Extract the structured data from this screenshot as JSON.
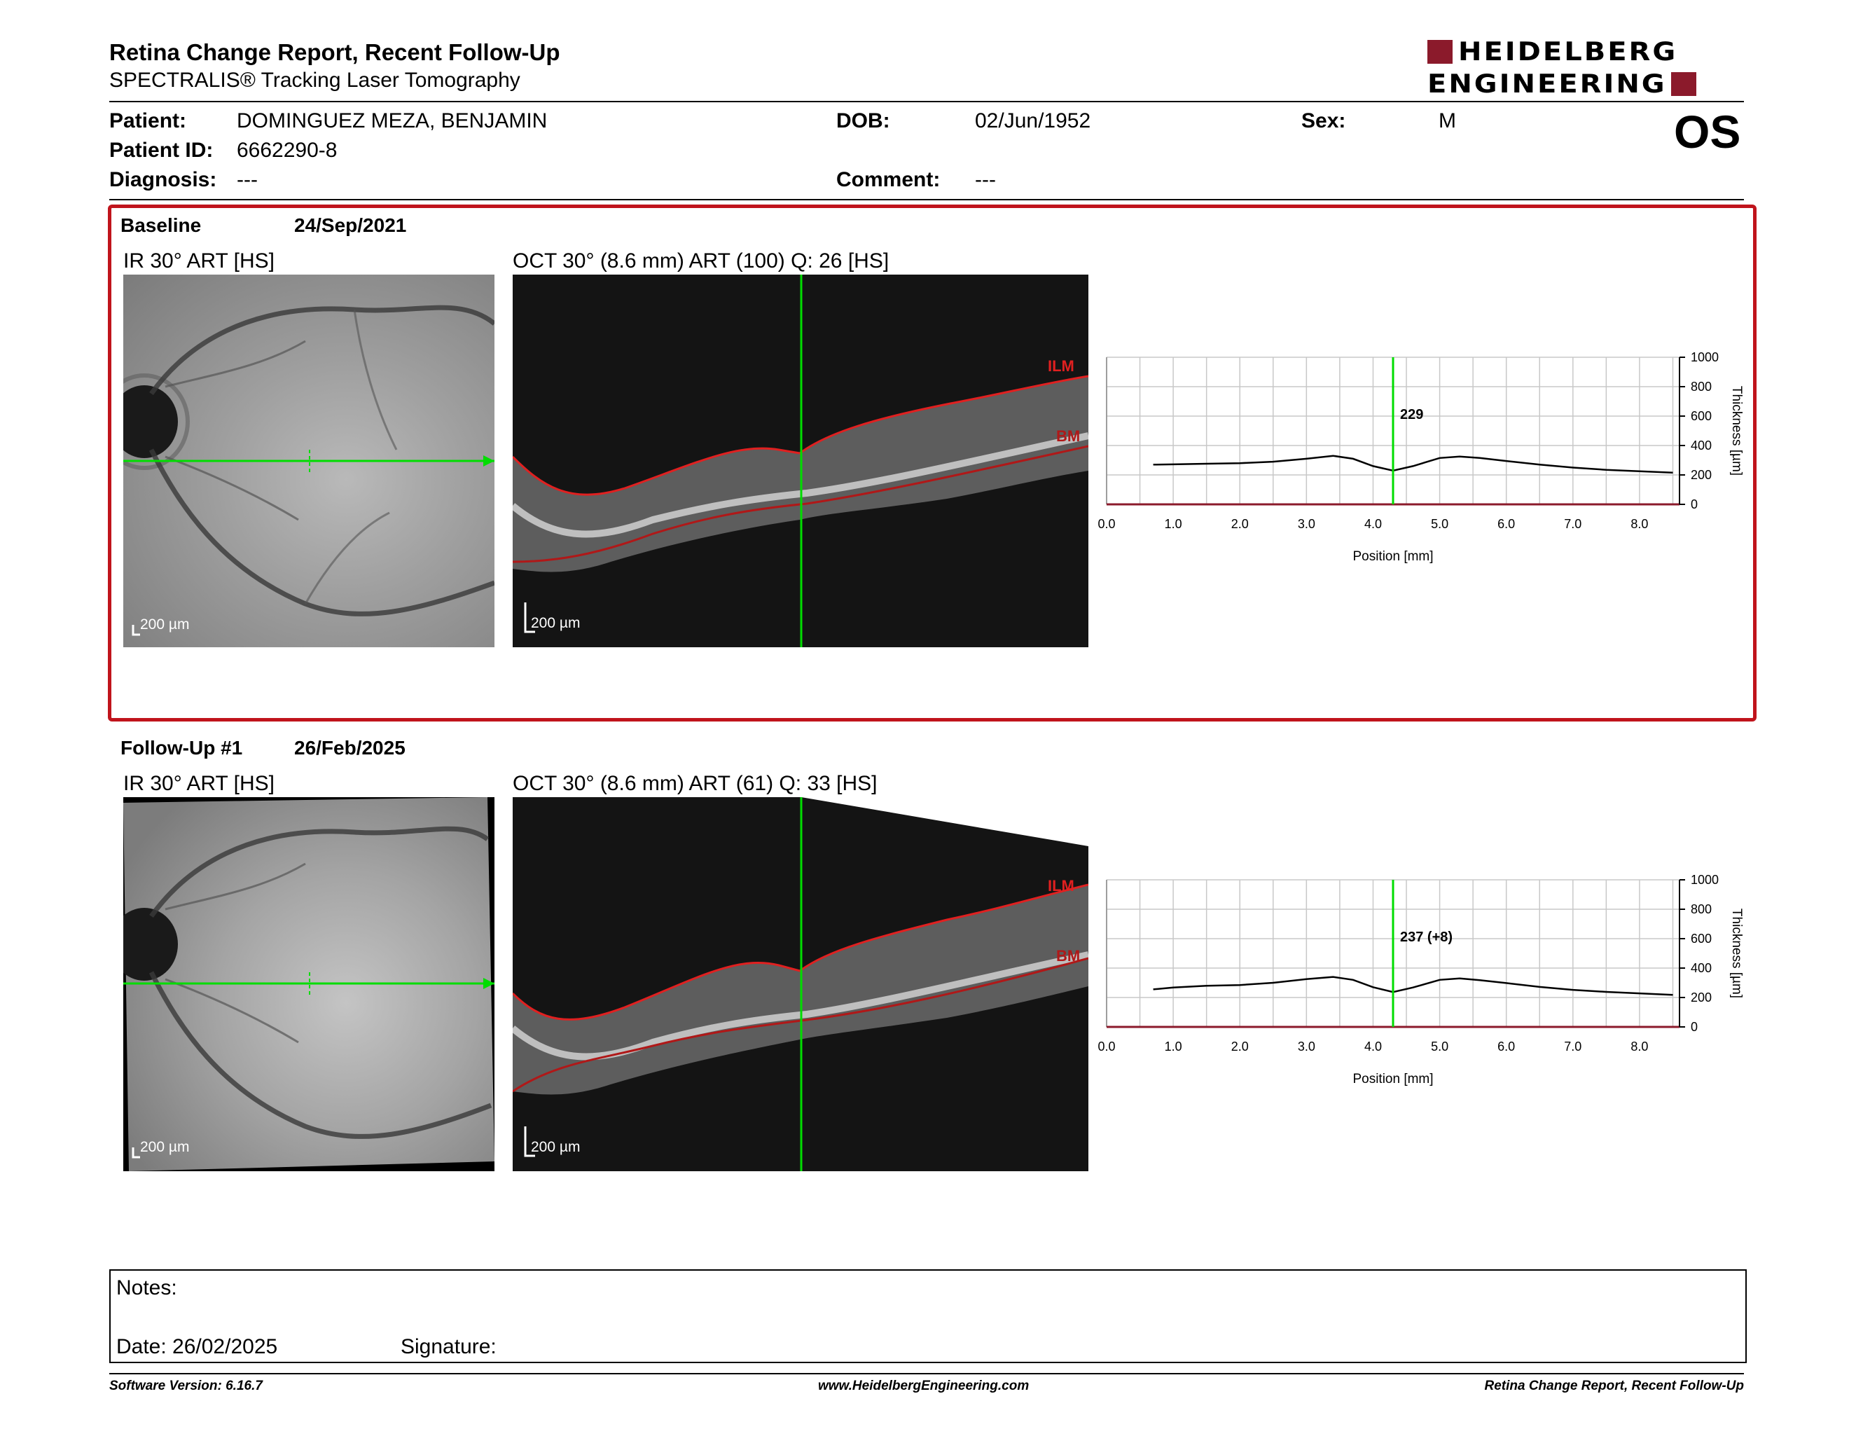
{
  "header": {
    "title": "Retina Change Report, Recent Follow-Up",
    "subtitle": "SPECTRALIS® Tracking Laser Tomography",
    "logo_line1": "HEIDELBERG",
    "logo_line2": "ENGINEERING",
    "eye": "OS"
  },
  "patient": {
    "patient_label": "Patient:",
    "patient_value": "DOMINGUEZ MEZA, BENJAMIN",
    "id_label": "Patient ID:",
    "id_value": "6662290-8",
    "diagnosis_label": "Diagnosis:",
    "diagnosis_value": "---",
    "dob_label": "DOB:",
    "dob_value": "02/Jun/1952",
    "comment_label": "Comment:",
    "comment_value": "---",
    "sex_label": "Sex:",
    "sex_value": "M"
  },
  "baseline": {
    "label": "Baseline",
    "date": "24/Sep/2021",
    "ir_label": "IR 30° ART [HS]",
    "oct_label": "OCT 30° (8.6 mm) ART (100) Q: 26 [HS]",
    "scale_ir": "200 µm",
    "scale_oct": "200 µm",
    "ilm": "ILM",
    "bm": "BM"
  },
  "followup": {
    "label": "Follow-Up #1",
    "date": "26/Feb/2025",
    "ir_label": "IR 30° ART [HS]",
    "oct_label": "OCT 30° (8.6 mm) ART (61) Q: 33 [HS]",
    "scale_ir": "200 µm",
    "scale_oct": "200 µm",
    "ilm": "ILM",
    "bm": "BM"
  },
  "chart_data": [
    {
      "type": "line",
      "xlabel": "Position [mm]",
      "ylabel": "Thickness [µm]",
      "xlim": [
        0,
        8.6
      ],
      "ylim": [
        0,
        1000
      ],
      "x_ticks": [
        "0.0",
        "1.0",
        "2.0",
        "3.0",
        "4.0",
        "5.0",
        "6.0",
        "7.0",
        "8.0"
      ],
      "y_ticks": [
        "0",
        "200",
        "400",
        "600",
        "800",
        "1000"
      ],
      "cursor_x": 4.3,
      "cursor_label": "229",
      "series": [
        {
          "x": [
            0.7,
            1.0,
            1.5,
            2.0,
            2.5,
            3.0,
            3.4,
            3.7,
            4.0,
            4.3,
            4.6,
            5.0,
            5.3,
            5.6,
            6.0,
            6.5,
            7.0,
            7.5,
            8.0,
            8.5
          ],
          "values": [
            270,
            272,
            276,
            280,
            290,
            310,
            330,
            310,
            260,
            229,
            260,
            315,
            325,
            315,
            295,
            270,
            250,
            235,
            225,
            215
          ]
        }
      ]
    },
    {
      "type": "line",
      "xlabel": "Position [mm]",
      "ylabel": "Thickness [µm]",
      "xlim": [
        0,
        8.6
      ],
      "ylim": [
        0,
        1000
      ],
      "x_ticks": [
        "0.0",
        "1.0",
        "2.0",
        "3.0",
        "4.0",
        "5.0",
        "6.0",
        "7.0",
        "8.0"
      ],
      "y_ticks": [
        "0",
        "200",
        "400",
        "600",
        "800",
        "1000"
      ],
      "cursor_x": 4.3,
      "cursor_label": "237 (+8)",
      "series": [
        {
          "x": [
            0.7,
            1.0,
            1.5,
            2.0,
            2.5,
            3.0,
            3.4,
            3.7,
            4.0,
            4.3,
            4.6,
            5.0,
            5.3,
            5.6,
            6.0,
            6.5,
            7.0,
            7.5,
            8.0,
            8.5
          ],
          "values": [
            255,
            268,
            280,
            285,
            300,
            325,
            340,
            320,
            270,
            237,
            268,
            320,
            330,
            318,
            298,
            272,
            252,
            238,
            228,
            218
          ]
        }
      ]
    }
  ],
  "colors": {
    "frame": "#c0141c",
    "cursor": "#00dd00",
    "curve": "#000000",
    "logo": "#8b1a2b"
  },
  "notes": {
    "label": "Notes:",
    "date": "Date: 26/02/2025",
    "signature": "Signature:"
  },
  "footer": {
    "version": "Software Version: 6.16.7",
    "url": "www.HeidelbergEngineering.com",
    "report": "Retina Change Report, Recent Follow-Up"
  }
}
